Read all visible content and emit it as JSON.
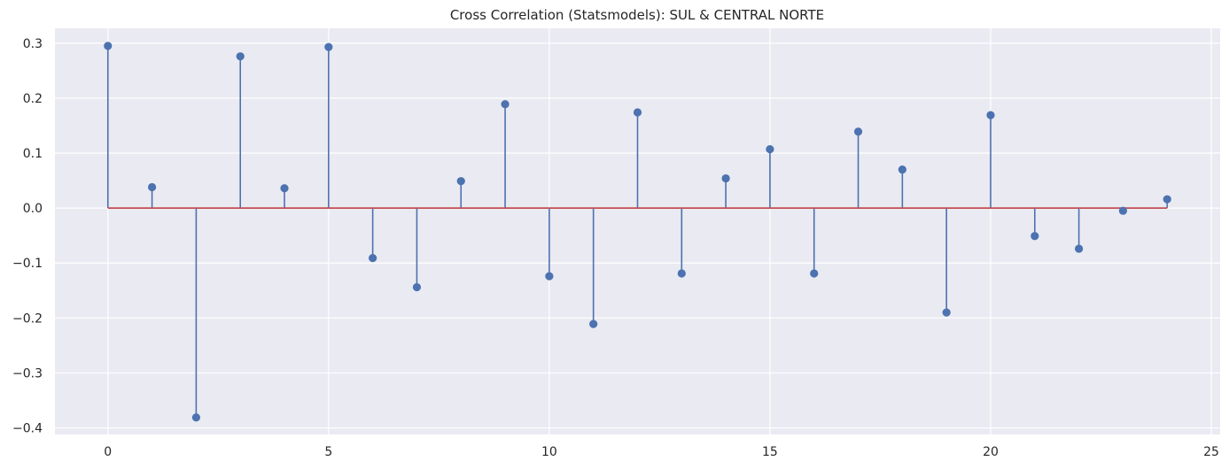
{
  "chart_data": {
    "type": "stem",
    "title": "Cross Correlation (Statsmodels): SUL & CENTRAL NORTE",
    "xlabel": "",
    "ylabel": "",
    "x": [
      0,
      1,
      2,
      3,
      4,
      5,
      6,
      7,
      8,
      9,
      10,
      11,
      12,
      13,
      14,
      15,
      16,
      17,
      18,
      19,
      20,
      21,
      22,
      23,
      24
    ],
    "values": [
      0.295,
      0.038,
      -0.381,
      0.276,
      0.036,
      0.293,
      -0.091,
      -0.144,
      0.049,
      0.189,
      -0.124,
      -0.211,
      0.174,
      -0.119,
      0.054,
      0.107,
      -0.119,
      0.139,
      0.07,
      -0.19,
      0.169,
      -0.051,
      -0.074,
      -0.005,
      0.016
    ],
    "baseline": 0,
    "xlim": [
      -1.2,
      25.2
    ],
    "ylim": [
      -0.412,
      0.327
    ],
    "xticks": [
      0,
      5,
      10,
      15,
      20,
      25
    ],
    "xtick_labels": [
      "0",
      "5",
      "10",
      "15",
      "20",
      "25"
    ],
    "yticks": [
      -0.4,
      -0.3,
      -0.2,
      -0.1,
      0.0,
      0.1,
      0.2,
      0.3
    ],
    "ytick_labels": [
      "−0.4",
      "−0.3",
      "−0.2",
      "−0.1",
      "0.0",
      "0.1",
      "0.2",
      "0.3"
    ],
    "grid": true,
    "colors": {
      "background": "#eaeaf2",
      "grid": "#ffffff",
      "stem": "#4c72b0",
      "marker": "#4c72b0",
      "baseline": "#c44e52"
    }
  }
}
